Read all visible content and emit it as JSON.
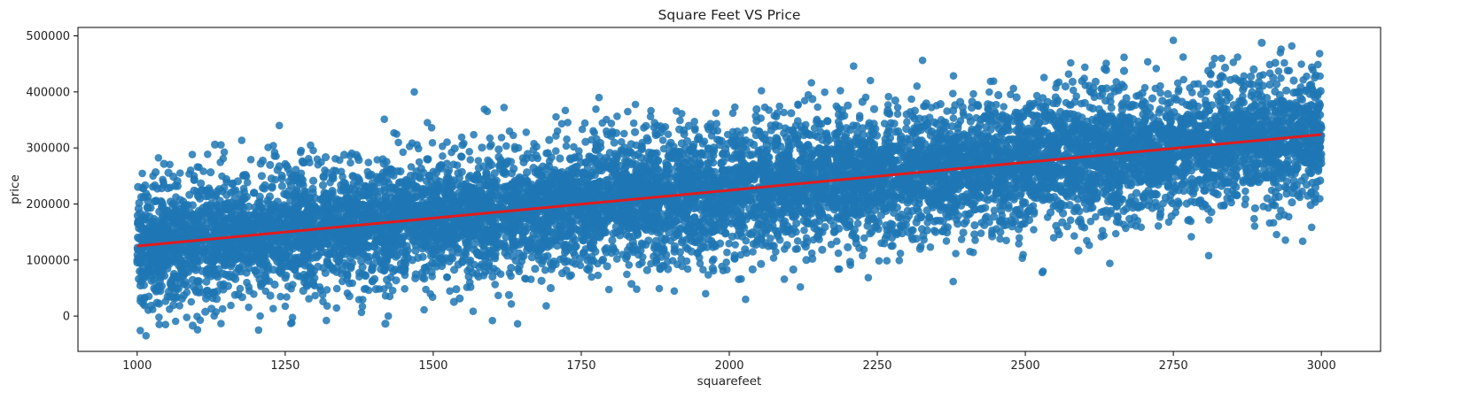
{
  "chart_data": {
    "type": "scatter",
    "title": "Square Feet VS Price",
    "xlabel": "squarefeet",
    "ylabel": "price",
    "xlim": [
      900,
      3100
    ],
    "ylim": [
      -63000,
      515000
    ],
    "x_ticks": [
      1000,
      1250,
      1500,
      1750,
      2000,
      2250,
      2500,
      2750,
      3000
    ],
    "y_ticks": [
      0,
      100000,
      200000,
      300000,
      400000,
      500000
    ],
    "grid": false,
    "legend": "none",
    "colors": {
      "points": "#1f77b4",
      "regression_line": "#e31a1c"
    },
    "regression_line": {
      "x": [
        1000,
        3000
      ],
      "y": [
        125000,
        324000
      ]
    },
    "scatter_band": {
      "x_range": [
        1000,
        3000
      ],
      "center_at_x_min": 125000,
      "center_at_x_max": 324000,
      "typical_spread": 75000
    },
    "notable_points": [
      {
        "x": 2750,
        "y": 492000
      },
      {
        "x": 2950,
        "y": 482000
      },
      {
        "x": 1468,
        "y": 400000
      },
      {
        "x": 2210,
        "y": 446000
      },
      {
        "x": 1240,
        "y": 340000
      },
      {
        "x": 1780,
        "y": 390000
      },
      {
        "x": 1015,
        "y": -35000
      },
      {
        "x": 1205,
        "y": -25000
      },
      {
        "x": 1600,
        "y": -8000
      },
      {
        "x": 2530,
        "y": 80000
      },
      {
        "x": 2120,
        "y": 52000
      },
      {
        "x": 1960,
        "y": 40000
      }
    ]
  }
}
